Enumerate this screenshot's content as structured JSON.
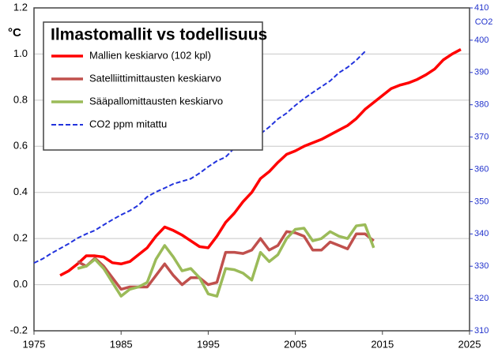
{
  "chart_data": {
    "type": "line",
    "title": "Ilmastomallit vs todellisuus",
    "y_label": "°C",
    "y2_label": "CO2",
    "xlim": [
      1975,
      2025
    ],
    "xticks": [
      1975,
      1985,
      1995,
      2005,
      2015,
      2025
    ],
    "ylim": [
      -0.2,
      1.2
    ],
    "yticks": [
      -0.2,
      {
        "value": 0,
        "label": "0.0"
      },
      0.2,
      0.4,
      0.6,
      0.8,
      {
        "value": 1,
        "label": "1.0"
      },
      1.2
    ],
    "y2lim": [
      310,
      410
    ],
    "y2ticks": [
      310,
      320,
      330,
      340,
      350,
      360,
      370,
      380,
      390,
      400,
      410
    ],
    "grid": true,
    "legend": "upper left",
    "series": [
      {
        "name": "Mallien keskiarvo (102 kpl)",
        "color": "#ff0000",
        "width": 3.5,
        "line_style": "solid",
        "x": [
          1978,
          1979,
          1980,
          1981,
          1982,
          1983,
          1984,
          1985,
          1986,
          1987,
          1988,
          1989,
          1990,
          1991,
          1992,
          1993,
          1994,
          1995,
          1996,
          1997,
          1998,
          1999,
          2000,
          2001,
          2002,
          2003,
          2004,
          2005,
          2006,
          2007,
          2008,
          2009,
          2010,
          2011,
          2012,
          2013,
          2014,
          2015,
          2016,
          2017,
          2018,
          2019,
          2020,
          2021,
          2022,
          2023,
          2024
        ],
        "values": [
          0.04,
          0.06,
          0.09,
          0.125,
          0.125,
          0.12,
          0.095,
          0.09,
          0.1,
          0.13,
          0.16,
          0.21,
          0.25,
          0.235,
          0.215,
          0.19,
          0.165,
          0.16,
          0.21,
          0.27,
          0.31,
          0.36,
          0.4,
          0.46,
          0.49,
          0.53,
          0.565,
          0.58,
          0.6,
          0.615,
          0.63,
          0.65,
          0.67,
          0.69,
          0.72,
          0.76,
          0.79,
          0.82,
          0.85,
          0.865,
          0.875,
          0.89,
          0.91,
          0.935,
          0.975,
          1.0,
          1.02
        ]
      },
      {
        "name": "Satelliittimittausten keskiarvo",
        "color": "#c0504d",
        "width": 3.5,
        "line_style": "solid",
        "x": [
          1980,
          1981,
          1982,
          1983,
          1984,
          1985,
          1986,
          1987,
          1988,
          1989,
          1990,
          1991,
          1992,
          1993,
          1994,
          1995,
          1996,
          1997,
          1998,
          1999,
          2000,
          2001,
          2002,
          2003,
          2004,
          2005,
          2006,
          2007,
          2008,
          2009,
          2010,
          2011,
          2012,
          2013,
          2014
        ],
        "values": [
          0.1,
          0.08,
          0.115,
          0.08,
          0.03,
          -0.02,
          -0.01,
          -0.01,
          -0.01,
          0.04,
          0.09,
          0.04,
          0.0,
          0.03,
          0.03,
          0.0,
          0.01,
          0.14,
          0.14,
          0.135,
          0.15,
          0.2,
          0.15,
          0.17,
          0.23,
          0.225,
          0.21,
          0.15,
          0.15,
          0.185,
          0.17,
          0.155,
          0.22,
          0.22,
          0.19
        ]
      },
      {
        "name": "Sääpallomittausten keskiarvo",
        "color": "#9bbb59",
        "width": 3.5,
        "line_style": "solid",
        "x": [
          1980,
          1981,
          1982,
          1983,
          1984,
          1985,
          1986,
          1987,
          1988,
          1989,
          1990,
          1991,
          1992,
          1993,
          1994,
          1995,
          1996,
          1997,
          1998,
          1999,
          2000,
          2001,
          2002,
          2003,
          2004,
          2005,
          2006,
          2007,
          2008,
          2009,
          2010,
          2011,
          2012,
          2013,
          2014
        ],
        "values": [
          0.07,
          0.08,
          0.11,
          0.07,
          0.01,
          -0.05,
          -0.02,
          -0.01,
          0.01,
          0.11,
          0.17,
          0.12,
          0.06,
          0.07,
          0.03,
          -0.04,
          -0.05,
          0.07,
          0.065,
          0.05,
          0.02,
          0.14,
          0.1,
          0.13,
          0.2,
          0.24,
          0.245,
          0.19,
          0.2,
          0.23,
          0.21,
          0.2,
          0.255,
          0.26,
          0.16
        ]
      },
      {
        "name": "CO2 ppm mitattu",
        "color": "#2233dd",
        "width": 2,
        "line_style": "dashed",
        "axis": "y2",
        "x": [
          1975,
          1976,
          1977,
          1978,
          1979,
          1980,
          1981,
          1982,
          1983,
          1984,
          1985,
          1986,
          1987,
          1988,
          1989,
          1990,
          1991,
          1992,
          1993,
          1994,
          1995,
          1996,
          1997,
          1998,
          1999,
          2000,
          2001,
          2002,
          2003,
          2004,
          2005,
          2006,
          2007,
          2008,
          2009,
          2010,
          2011,
          2012,
          2013
        ],
        "values": [
          331,
          332.3,
          334,
          335.5,
          337,
          338.7,
          340,
          341.1,
          342.8,
          344.4,
          345.9,
          347.2,
          348.9,
          351.5,
          353,
          354.2,
          355.5,
          356.3,
          357.1,
          358.8,
          360.8,
          362.6,
          363.8,
          366.6,
          368.3,
          369.5,
          371,
          373.1,
          375.6,
          377.4,
          379.8,
          381.9,
          383.8,
          385.6,
          387.4,
          389.9,
          391.6,
          393.8,
          396.5
        ]
      }
    ]
  }
}
